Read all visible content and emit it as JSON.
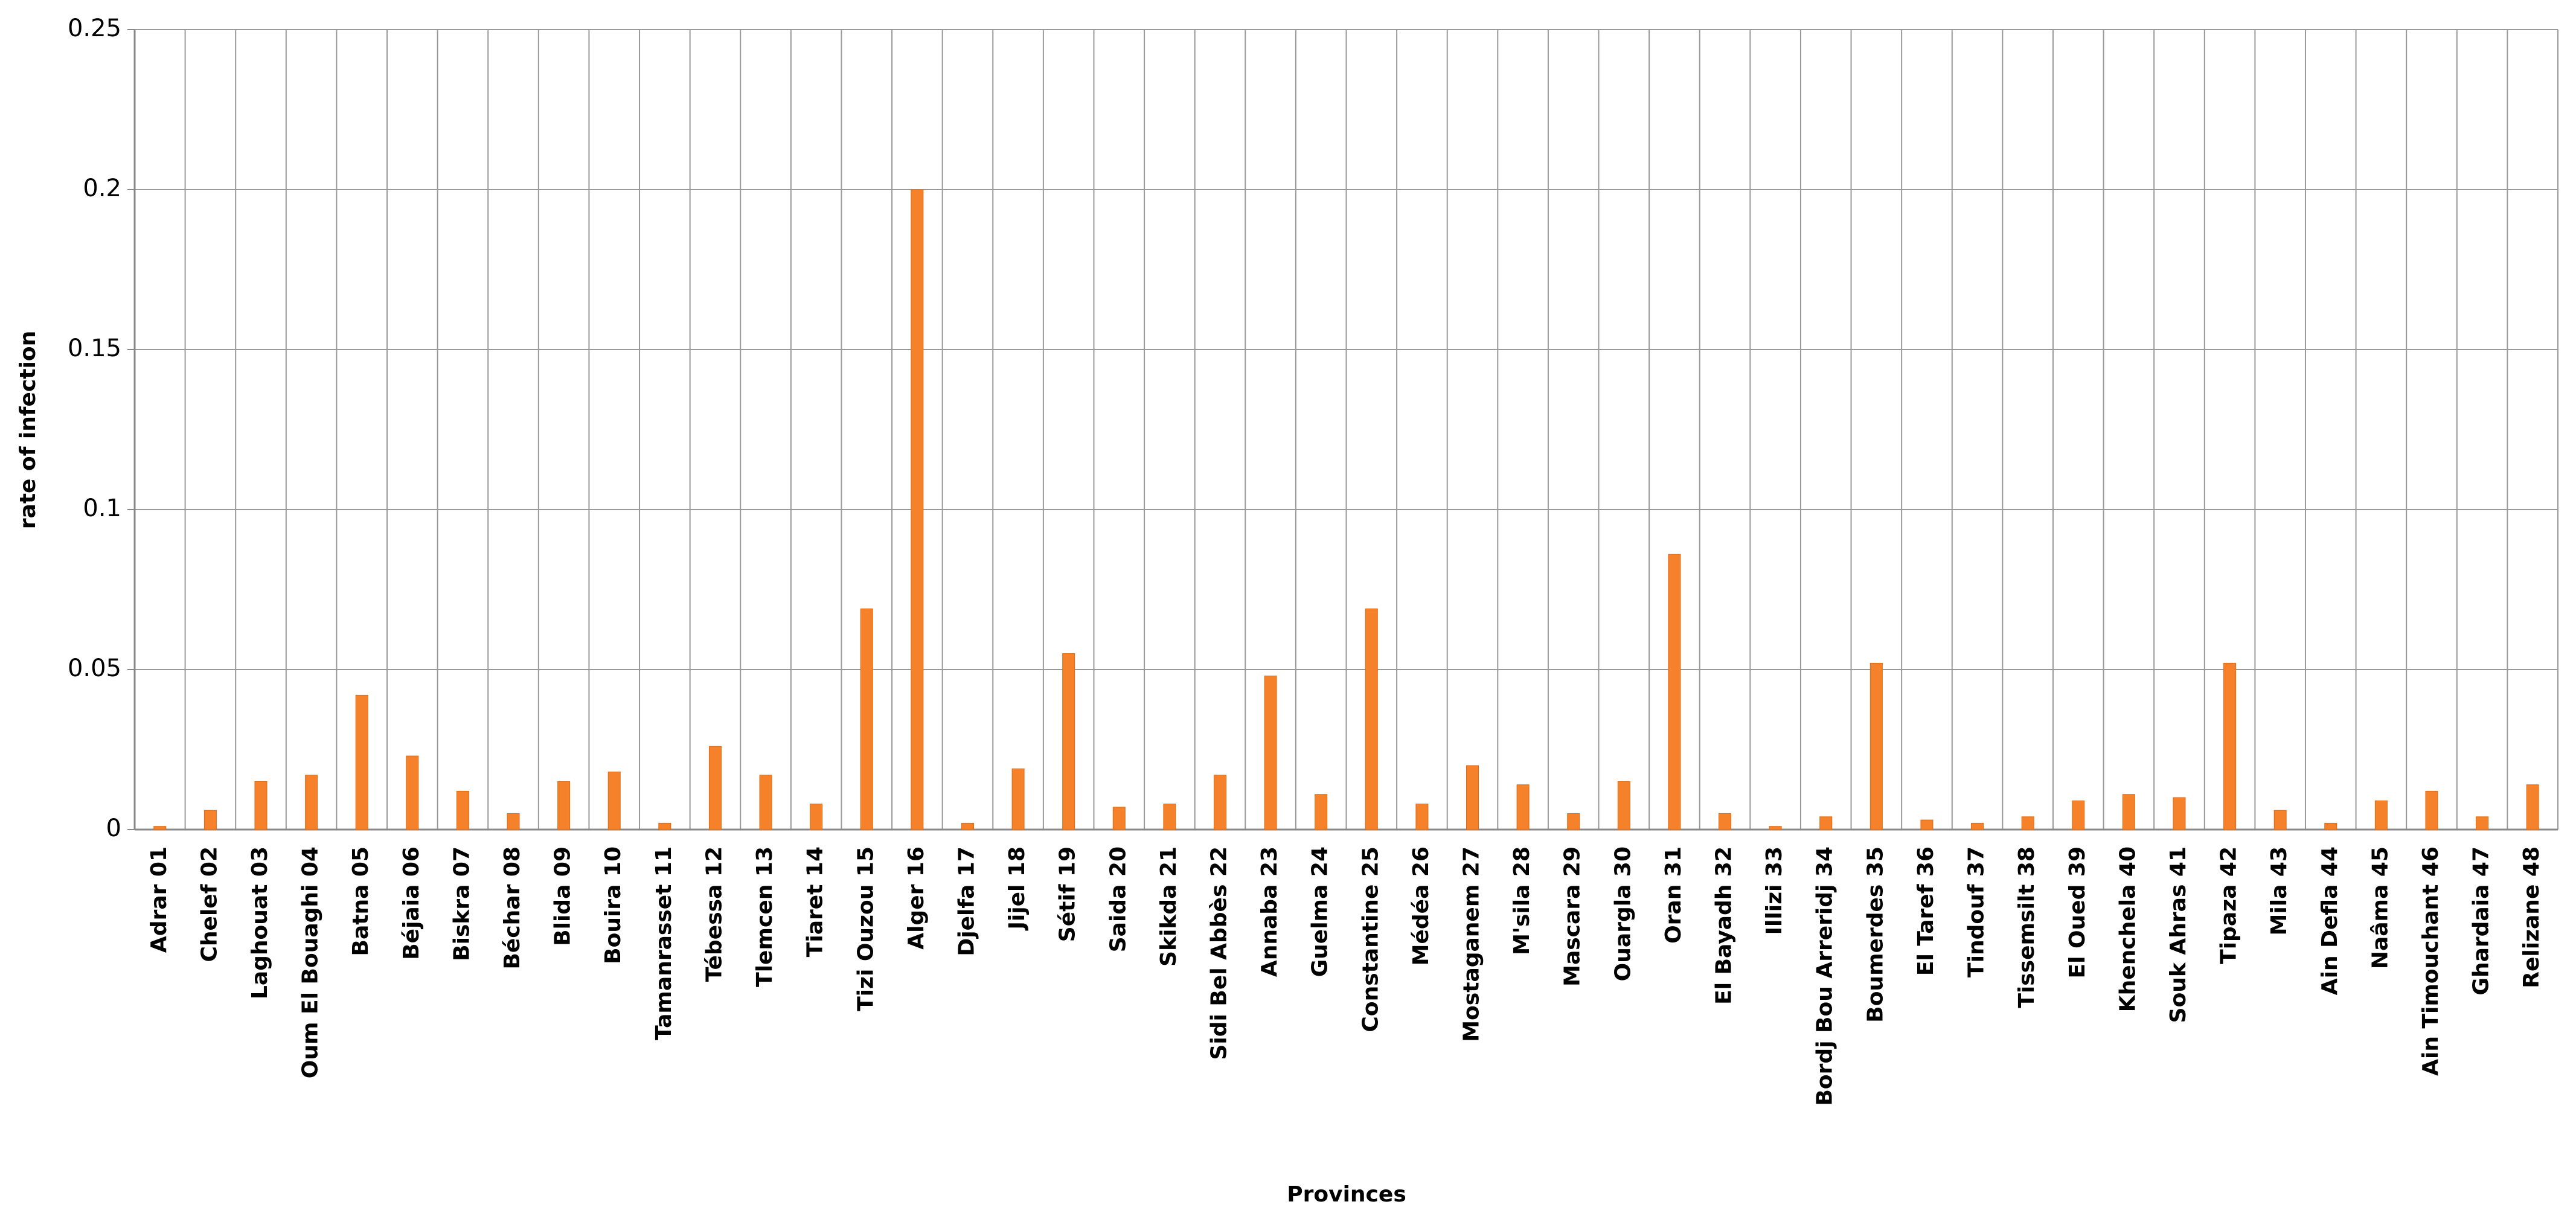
{
  "chart_data": {
    "type": "bar",
    "x_label": "Provinces",
    "y_label": "rate of infection",
    "categories": [
      "Adrar 01",
      "Chelef 02",
      "Laghouat 03",
      "Oum El Bouaghi 04",
      "Batna 05",
      "Béjaia 06",
      "Biskra 07",
      "Béchar 08",
      "Blida 09",
      "Bouira 10",
      "Tamanrasset 11",
      "Tébessa 12",
      "Tlemcen 13",
      "Tiaret 14",
      "Tizi Ouzou 15",
      "Alger 16",
      "Djelfa 17",
      "Jijel 18",
      "Sétif 19",
      "Saida 20",
      "Skikda 21",
      "Sidi Bel Abbès 22",
      "Annaba 23",
      "Guelma 24",
      "Constantine 25",
      "Médéa 26",
      "Mostaganem 27",
      "M'sila 28",
      "Mascara 29",
      "Ouargla 30",
      "Oran 31",
      "El Bayadh 32",
      "Illizi 33",
      "Bordj Bou Arreridj 34",
      "Boumerdes 35",
      "El Taref 36",
      "Tindouf 37",
      "Tissemsilt 38",
      "El Oued 39",
      "Khenchela 40",
      "Souk Ahras 41",
      "Tipaza 42",
      "Mila 43",
      "Ain Defla 44",
      "Naâma 45",
      "Ain Timouchant 46",
      "Ghardaia 47",
      "Relizane 48"
    ],
    "values": [
      0.001,
      0.006,
      0.015,
      0.017,
      0.042,
      0.023,
      0.012,
      0.005,
      0.015,
      0.018,
      0.002,
      0.026,
      0.017,
      0.008,
      0.069,
      0.2,
      0.002,
      0.019,
      0.055,
      0.007,
      0.008,
      0.017,
      0.048,
      0.011,
      0.069,
      0.008,
      0.02,
      0.014,
      0.005,
      0.015,
      0.086,
      0.005,
      0.001,
      0.004,
      0.052,
      0.003,
      0.002,
      0.004,
      0.009,
      0.011,
      0.01,
      0.052,
      0.006,
      0.002,
      0.009,
      0.012,
      0.004,
      0.014
    ],
    "color": "#f5812a",
    "ylim": [
      0,
      0.25
    ],
    "yticks": [
      0,
      0.05,
      0.1,
      0.15,
      0.2,
      0.25
    ],
    "grid": true
  }
}
